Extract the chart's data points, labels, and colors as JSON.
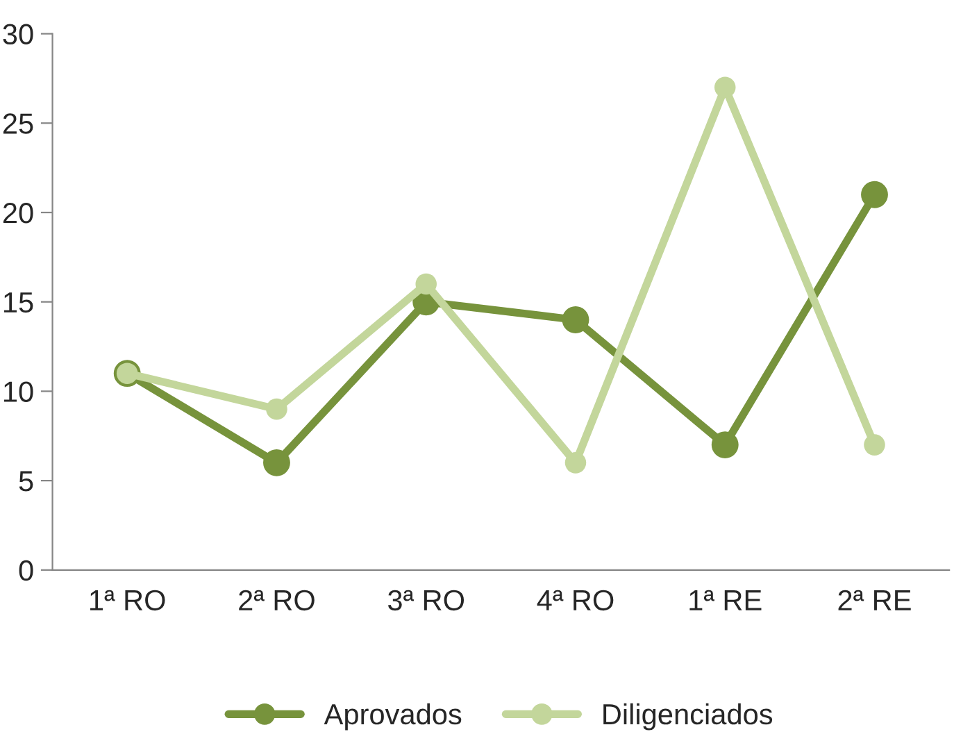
{
  "chart_data": {
    "type": "line",
    "categories": [
      "1ª RO",
      "2ª RO",
      "3ª RO",
      "4ª RO",
      "1ª RE",
      "2ª RE"
    ],
    "series": [
      {
        "name": "Aprovados",
        "color": "#77933c",
        "values": [
          11,
          6,
          15,
          14,
          7,
          21
        ]
      },
      {
        "name": "Diligenciados",
        "color": "#c3d69b",
        "values": [
          11,
          9,
          16,
          6,
          27,
          7
        ]
      }
    ],
    "ylim": [
      0,
      30
    ],
    "yticks": [
      0,
      5,
      10,
      15,
      20,
      25,
      30
    ],
    "grid": false,
    "legend": "bottom",
    "marker": "circle",
    "line_style": "solid"
  }
}
